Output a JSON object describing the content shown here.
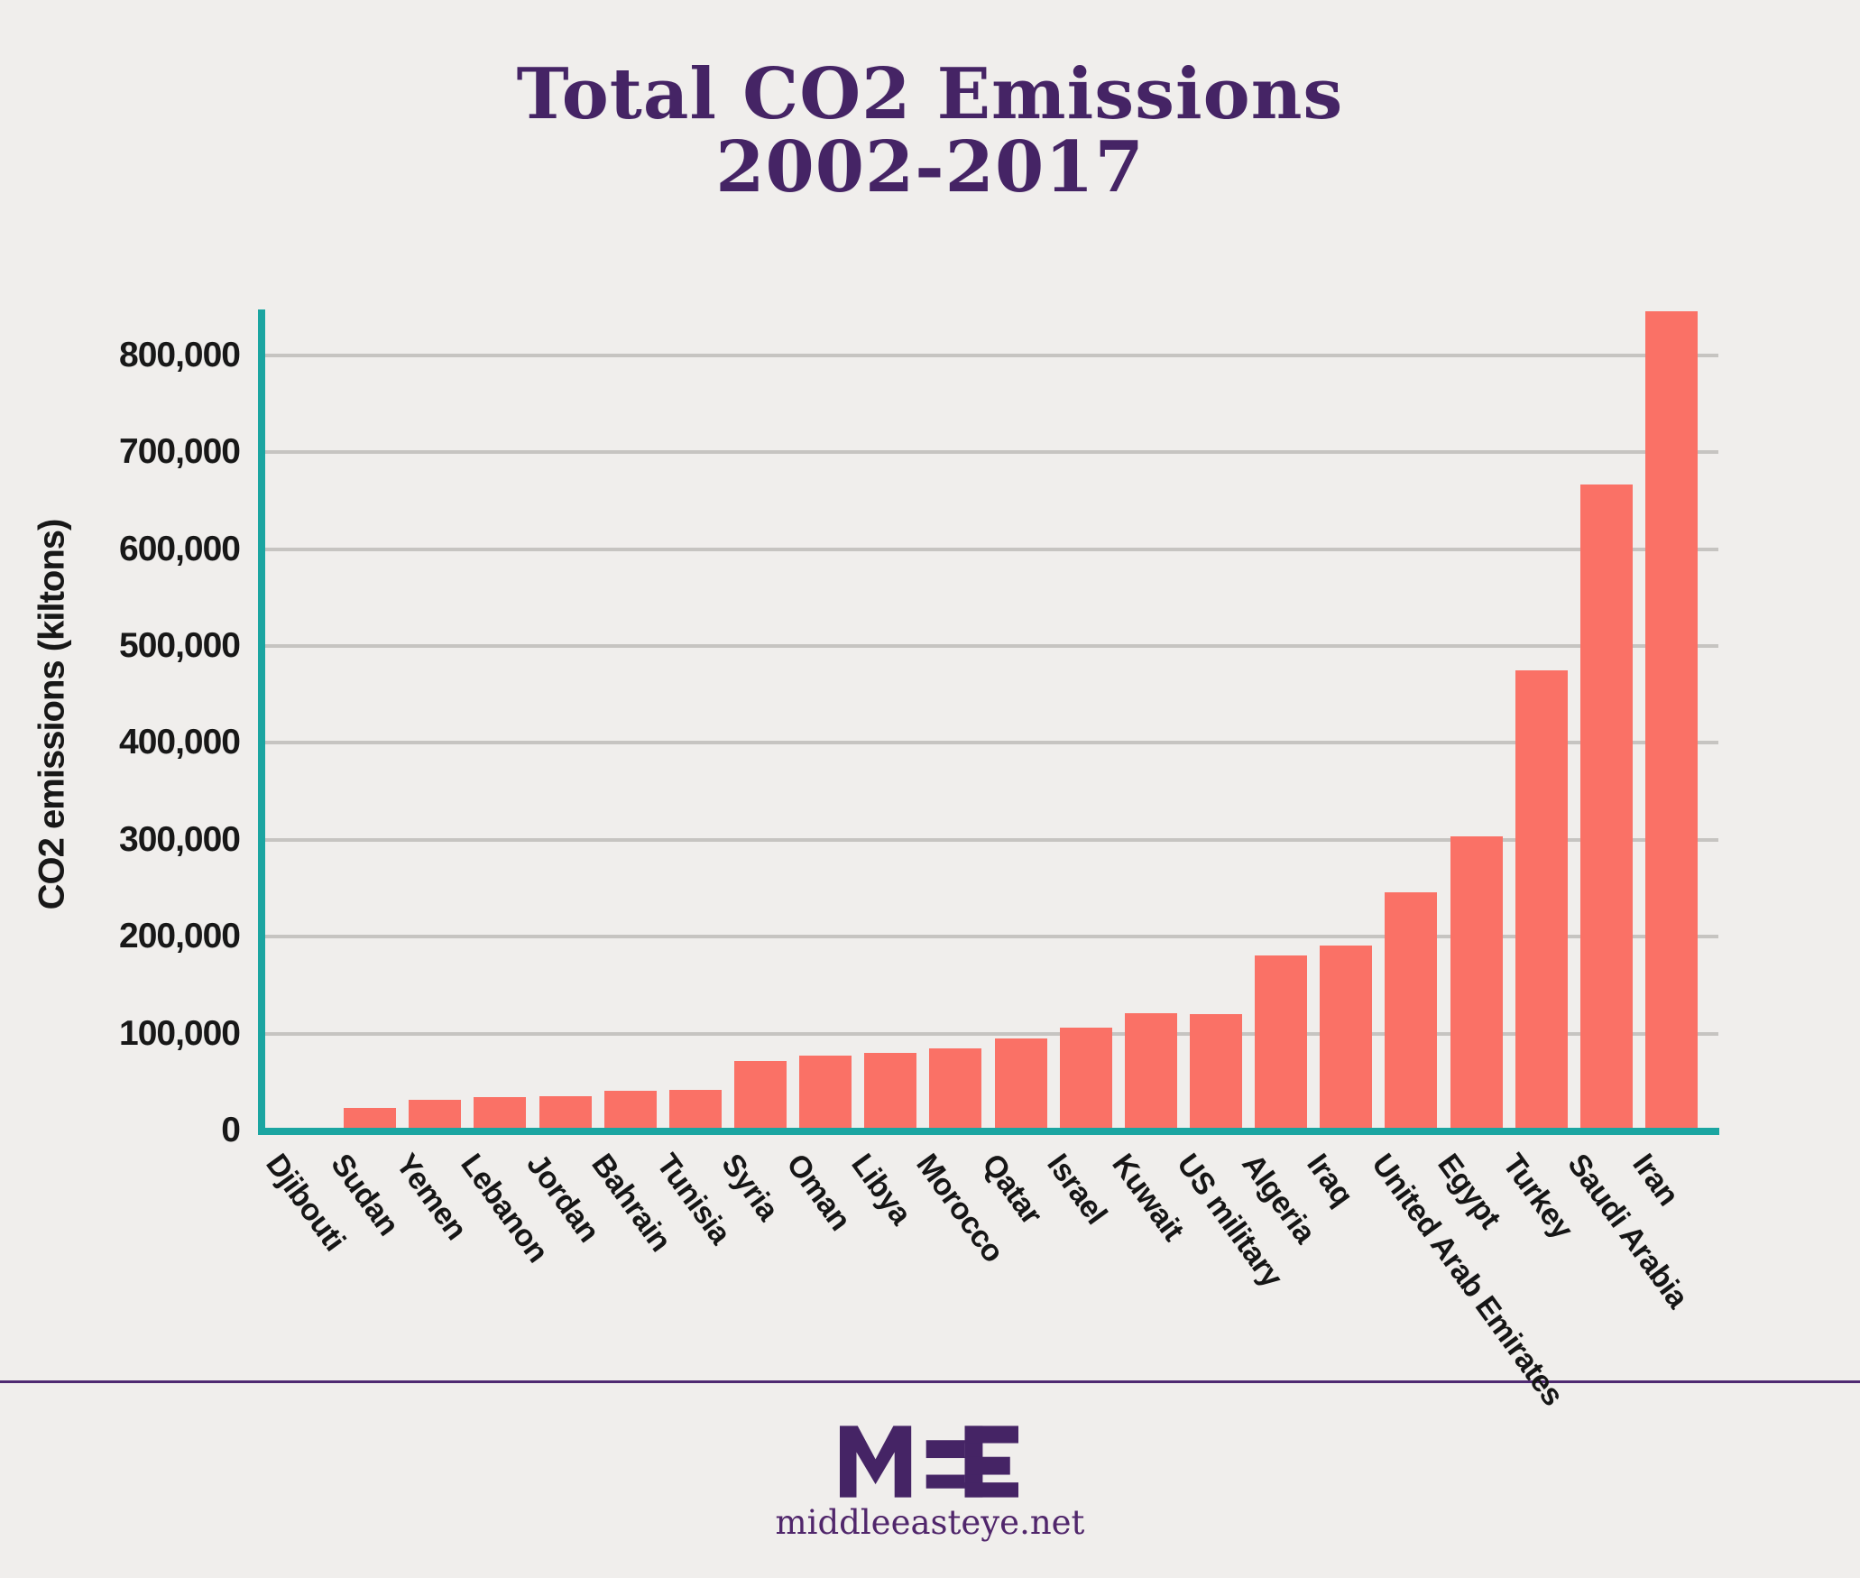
{
  "title": {
    "line1": "Total CO2 Emissions",
    "line2": "2002-2017"
  },
  "chart_data": {
    "type": "bar",
    "title": "Total CO2 Emissions 2002-2017",
    "xlabel": "",
    "ylabel": "CO2 emissions (kiltons)",
    "ylim": [
      0,
      860000
    ],
    "ytick_step": 100000,
    "ytick_labels": [
      "0",
      "100,000",
      "200,000",
      "300,000",
      "400,000",
      "500,000",
      "600,000",
      "700,000",
      "800,000"
    ],
    "grid": true,
    "legend": "none",
    "bar_color": "#fa7166",
    "axis_color": "#1ba5a1",
    "grid_color": "#c6c4c1",
    "categories": [
      "Djibouti",
      "Sudan",
      "Yemen",
      "Lebanon",
      "Jordan",
      "Bahrain",
      "Tunisia",
      "Syria",
      "Oman",
      "Libya",
      "Morocco",
      "Qatar",
      "Israel",
      "Kuwait",
      "US military",
      "Algeria",
      "Iraq",
      "United Arab Emirates",
      "Egypt",
      "Turkey",
      "Saudi Arabia",
      "Iran"
    ],
    "values": [
      3000,
      23000,
      32000,
      34000,
      35000,
      41000,
      42000,
      72000,
      77000,
      80000,
      85000,
      95000,
      106000,
      121000,
      120000,
      181000,
      191000,
      246000,
      304000,
      475000,
      667000,
      845000
    ]
  },
  "footer": {
    "logo_name": "MEE",
    "site_url_text": "middleeasteye.net"
  },
  "colors": {
    "background": "#f0eeec",
    "title_purple": "#452465",
    "divider_purple": "#4f2a72",
    "text_dark": "#181818"
  }
}
